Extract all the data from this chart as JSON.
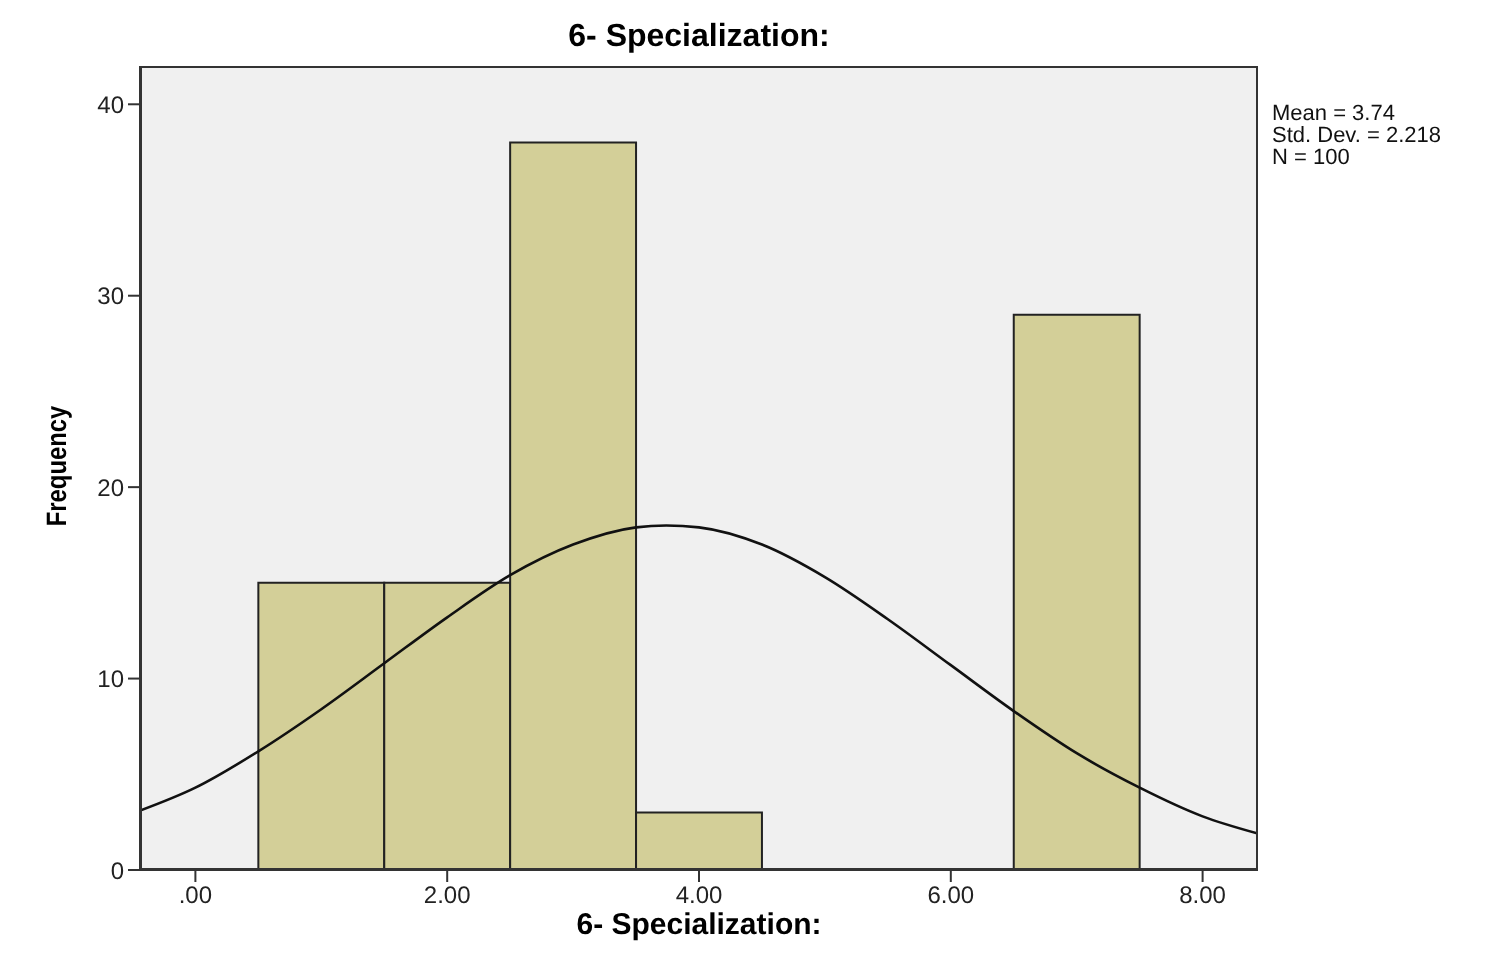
{
  "chart_data": {
    "type": "histogram",
    "title": "6- Specialization:",
    "xlabel": "6- Specialization:",
    "ylabel": "Frequency",
    "bins": [
      0.5,
      1.5,
      2.5,
      3.5,
      4.5,
      5.5,
      6.5,
      7.5
    ],
    "values": [
      15,
      15,
      38,
      3,
      0,
      0,
      29
    ],
    "color": "#d3cf98",
    "series": [
      {
        "type": "line",
        "color": "#111111",
        "x": [
          -0.44,
          0,
          0.5,
          1,
          1.5,
          2,
          2.5,
          3,
          3.5,
          3.74,
          4,
          4.5,
          5,
          5.5,
          6,
          6.5,
          7,
          7.5,
          8,
          8.44
        ],
        "values": [
          3.1,
          4.3,
          6.2,
          8.4,
          10.8,
          13.2,
          15.4,
          17.0,
          17.9,
          18.0,
          17.9,
          17.0,
          15.3,
          13.1,
          10.7,
          8.3,
          6.1,
          4.3,
          2.8,
          1.9
        ]
      }
    ],
    "xlim": [
      -0.44,
      8.44
    ],
    "xticks": [
      {
        "value": 0,
        "label": ".00"
      },
      {
        "value": 2,
        "label": "2.00"
      },
      {
        "value": 4,
        "label": "4.00"
      },
      {
        "value": 6,
        "label": "6.00"
      },
      {
        "value": 8,
        "label": "8.00"
      }
    ],
    "ylim": [
      0,
      42
    ],
    "yticks": [
      0,
      10,
      20,
      30,
      40
    ],
    "annotations": [
      "Mean = 3.74",
      "Std. Dev. = 2.218",
      "N = 100"
    ],
    "grid": false
  }
}
